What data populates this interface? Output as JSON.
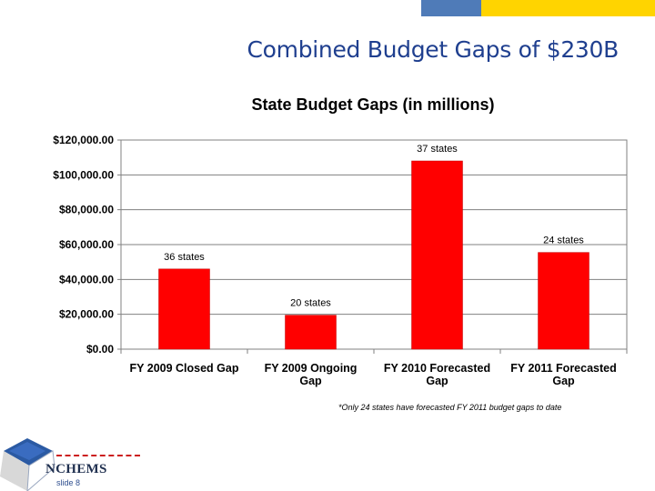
{
  "slide": {
    "title": "Combined Budget Gaps of $230B",
    "footnote": "*Only 24 states have forecasted FY 2011 budget gaps to date",
    "logo_text": "NCHEMS",
    "slide_number": "slide 8"
  },
  "colors": {
    "bar": "#ff0000",
    "grid": "#808080",
    "accent_blue": "#4f7bb8",
    "accent_yellow": "#ffd400",
    "title_blue": "#1f3f8f"
  },
  "chart_data": {
    "type": "bar",
    "title": "State Budget Gaps (in millions)",
    "categories": [
      [
        "FY 2009 Closed Gap"
      ],
      [
        "FY 2009 Ongoing",
        "Gap"
      ],
      [
        "FY 2010 Forecasted",
        "Gap"
      ],
      [
        "FY 2011 Forecasted",
        "Gap"
      ]
    ],
    "values": [
      46000,
      19500,
      108000,
      55500
    ],
    "data_labels": [
      "36 states",
      "20 states",
      "37 states",
      "24 states"
    ],
    "ylim": [
      0,
      120000
    ],
    "yticks": [
      0,
      20000,
      40000,
      60000,
      80000,
      100000,
      120000
    ],
    "ytick_labels": [
      "$0.00",
      "$20,000.00",
      "$40,000.00",
      "$60,000.00",
      "$80,000.00",
      "$100,000.00",
      "$120,000.00"
    ],
    "xlabel": "",
    "ylabel": "",
    "grid": true,
    "legend": "none"
  }
}
